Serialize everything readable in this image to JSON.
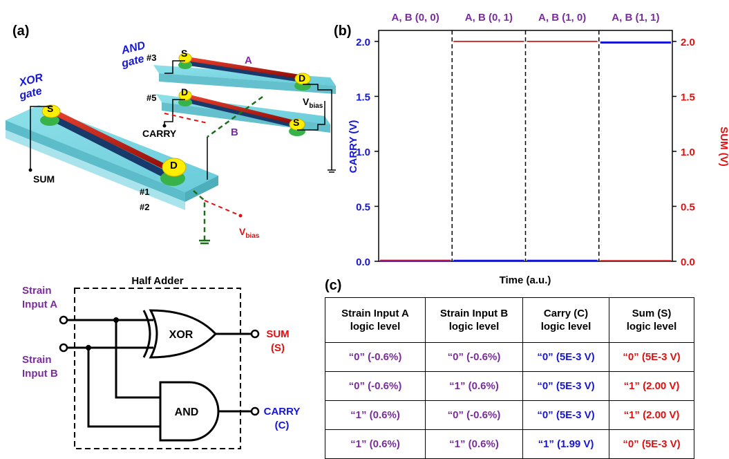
{
  "panels": {
    "a_label": "(a)",
    "b_label": "(b)",
    "c_label": "(c)"
  },
  "device": {
    "and_gate": [
      "AND",
      "gate"
    ],
    "xor_gate": [
      "XOR",
      "gate"
    ],
    "s": "S",
    "d": "D",
    "a": "A",
    "b": "B",
    "n3": "#3",
    "n5": "#5",
    "n1": "#1",
    "n2": "#2",
    "vbias": "V",
    "vbias_sub": "bias",
    "carry": "CARRY",
    "sum": "SUM"
  },
  "circuit": {
    "title": "Half Adder",
    "input_a": [
      "Strain",
      "Input A"
    ],
    "input_b": [
      "Strain",
      "Input B"
    ],
    "xor": "XOR",
    "and": "AND",
    "sum_out": [
      "SUM",
      "(S)"
    ],
    "carry_out": [
      "CARRY",
      "(C)"
    ]
  },
  "colors": {
    "carry": "#1515d8",
    "sum": "#e01010",
    "purple": "#7a2c9c",
    "substrate": "#5fd0dc",
    "channel": "#c0170f",
    "contact": "#ffee00",
    "contact_base": "#37b34a"
  },
  "chart_data": {
    "type": "line",
    "xlabel": "Time (a.u.)",
    "ylabel_left": "CARRY (V)",
    "ylabel_right": "SUM (V)",
    "ylim": [
      0,
      2.1
    ],
    "yticks": [
      "0.0",
      "0.5",
      "1.0",
      "1.5",
      "2.0"
    ],
    "segments": [
      "A, B (0, 0)",
      "A, B (0, 1)",
      "A, B (1, 0)",
      "A, B (1, 1)"
    ],
    "series": [
      {
        "name": "CARRY",
        "axis": "left",
        "values": [
          0.005,
          0.005,
          0.005,
          1.99
        ]
      },
      {
        "name": "SUM",
        "axis": "right",
        "values": [
          0.005,
          2.0,
          2.0,
          0.005
        ]
      }
    ]
  },
  "table": {
    "headers": [
      [
        "Strain Input A",
        "logic level"
      ],
      [
        "Strain Input B",
        "logic level"
      ],
      [
        "Carry (C)",
        "logic level"
      ],
      [
        "Sum (S)",
        "logic level"
      ]
    ],
    "rows": [
      [
        "“0” (-0.6%)",
        "“0” (-0.6%)",
        "“0” (5E-3 V)",
        "“0” (5E-3 V)"
      ],
      [
        "“0” (-0.6%)",
        "“1” (0.6%)",
        "“0” (5E-3 V)",
        "“1” (2.00 V)"
      ],
      [
        "“1” (0.6%)",
        "“0” (-0.6%)",
        "“0” (5E-3 V)",
        "“1” (2.00 V)"
      ],
      [
        "“1” (0.6%)",
        "“1” (0.6%)",
        "“1” (1.99 V)",
        "“0” (5E-3 V)"
      ]
    ]
  }
}
